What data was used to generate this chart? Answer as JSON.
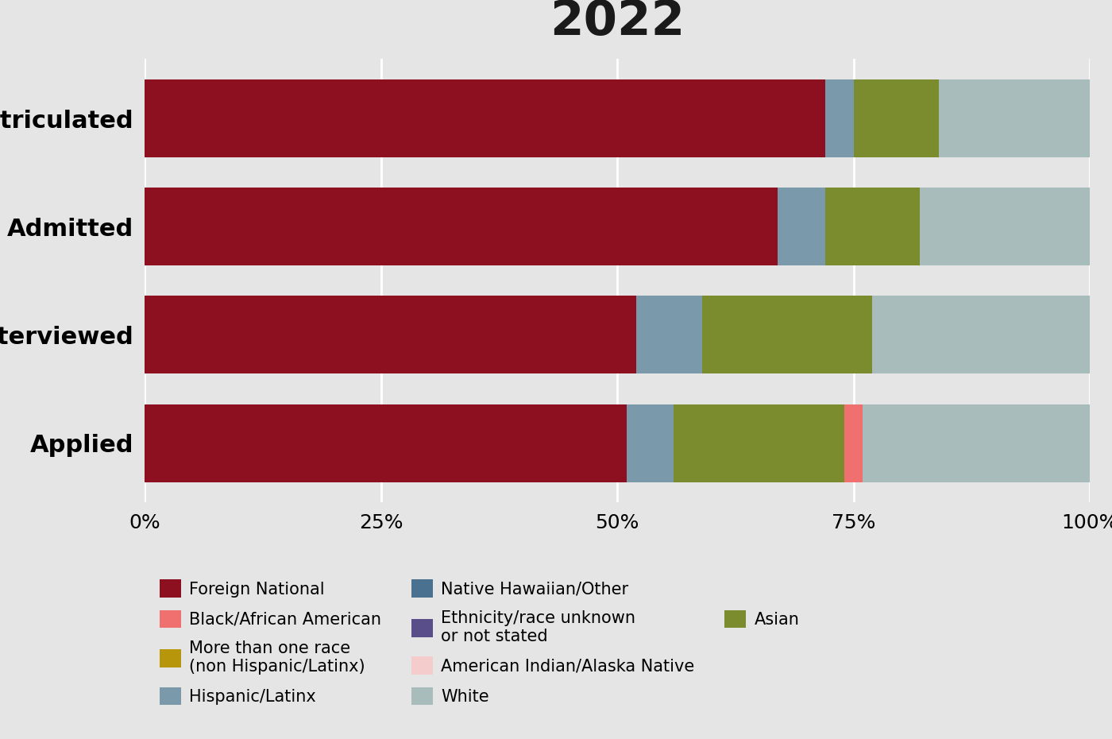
{
  "title": "2022",
  "categories": [
    "Matriculated",
    "Admitted",
    "Interviewed",
    "Applied"
  ],
  "segment_keys": [
    "Foreign National",
    "Hispanic/Latinx",
    "American Indian/Alaska Native",
    "Asian",
    "Black/African American",
    "Native Hawaiian/Other",
    "More than one race\n(non Hispanic/Latinx)",
    "White",
    "Ethnicity/race unknown\nor not stated"
  ],
  "values": {
    "Foreign National": [
      72,
      67,
      52,
      51
    ],
    "Hispanic/Latinx": [
      3,
      5,
      7,
      5
    ],
    "American Indian/Alaska Native": [
      0,
      0,
      0,
      0
    ],
    "Asian": [
      9,
      10,
      18,
      18
    ],
    "Black/African American": [
      0,
      0,
      0,
      2
    ],
    "Native Hawaiian/Other": [
      0,
      0,
      0,
      0
    ],
    "More than one race\n(non Hispanic/Latinx)": [
      0,
      0,
      0,
      0
    ],
    "White": [
      16,
      18,
      23,
      24
    ],
    "Ethnicity/race unknown\nor not stated": [
      0,
      0,
      0,
      0
    ]
  },
  "colors": {
    "Foreign National": "#8C1020",
    "Hispanic/Latinx": "#7A9AAC",
    "American Indian/Alaska Native": "#F5CCCC",
    "Asian": "#7B8C2E",
    "Black/African American": "#F07070",
    "Native Hawaiian/Other": "#4A7290",
    "More than one race\n(non Hispanic/Latinx)": "#B8960C",
    "White": "#A8BCBC",
    "Ethnicity/race unknown\nor not stated": "#5A4E8A"
  },
  "background_color": "#E5E5E5",
  "bar_height": 0.72,
  "xlim": [
    0,
    100
  ],
  "xticks": [
    0,
    25,
    50,
    75,
    100
  ],
  "xticklabels": [
    "0%",
    "25%",
    "50%",
    "75%",
    "100%"
  ],
  "title_fontsize": 44,
  "ytick_fontsize": 22,
  "xtick_fontsize": 18,
  "legend_fontsize": 15,
  "legend_col1": [
    "Foreign National",
    "Hispanic/Latinx",
    "American Indian/Alaska Native",
    "Asian"
  ],
  "legend_col2": [
    "Black/African American",
    "Native Hawaiian/Other",
    "White"
  ],
  "legend_col3": [
    "More than one race\n(non Hispanic/Latinx)",
    "Ethnicity/race unknown\nor not stated"
  ]
}
